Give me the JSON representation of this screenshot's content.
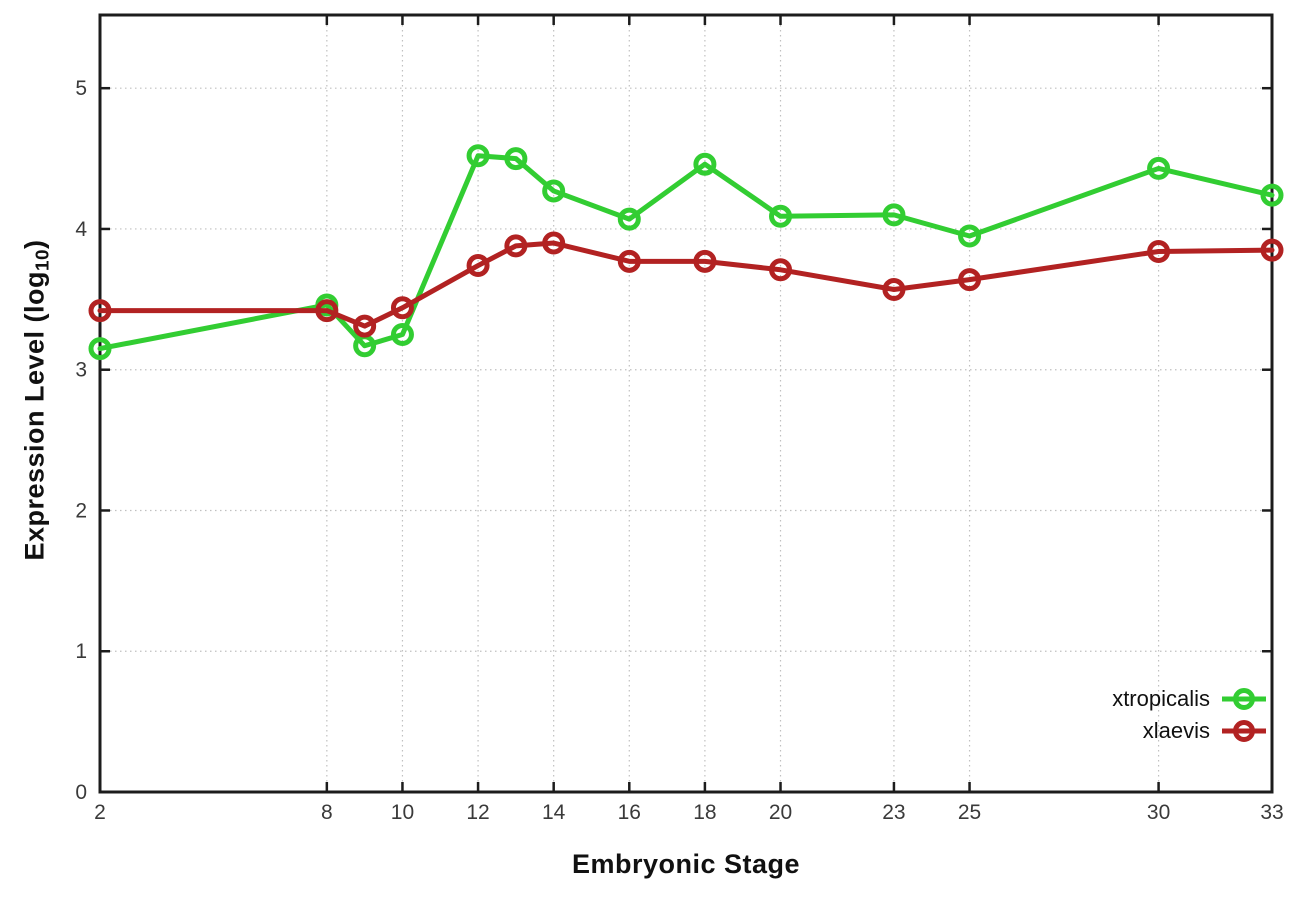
{
  "chart_data": {
    "type": "line",
    "title": "",
    "xlabel": "Embryonic Stage",
    "ylabel": "Expression Level (log10)",
    "ylabel_parts": {
      "pre": "Expression Level (log",
      "sub": "10",
      "post": ")"
    },
    "x": [
      2,
      8,
      9,
      10,
      12,
      13,
      14,
      16,
      18,
      20,
      23,
      25,
      30,
      33
    ],
    "x_ticks": {
      "values": [
        2,
        8,
        10,
        12,
        14,
        16,
        18,
        20,
        23,
        25,
        30,
        33
      ],
      "labels": [
        "2",
        "8",
        "10",
        "12",
        "14",
        "16",
        "18",
        "20",
        "23",
        "25",
        "30",
        "33"
      ]
    },
    "y_ticks": {
      "values": [
        0,
        1,
        2,
        3,
        4,
        5
      ],
      "labels": [
        "0",
        "1",
        "2",
        "3",
        "4",
        "5"
      ]
    },
    "xlim": [
      2,
      33
    ],
    "ylim": [
      0,
      5.52
    ],
    "grid": true,
    "legend_position": "inside-right-middle",
    "colors": {
      "background": "#ffffff",
      "axis": "#1c1c1c",
      "grid": "#c0c0c0",
      "tick_label": "#3a3a3a",
      "title": "#111111"
    },
    "series": [
      {
        "name": "xtropicalis",
        "color": "#32cd32",
        "values": [
          3.15,
          3.46,
          3.17,
          3.25,
          4.52,
          4.5,
          4.27,
          4.07,
          4.46,
          4.09,
          4.1,
          3.95,
          4.43,
          4.24
        ]
      },
      {
        "name": "xlaevis",
        "color": "#b22222",
        "values": [
          3.42,
          3.42,
          3.31,
          3.44,
          3.74,
          3.88,
          3.9,
          3.77,
          3.77,
          3.71,
          3.57,
          3.64,
          3.84,
          3.85
        ]
      }
    ]
  }
}
